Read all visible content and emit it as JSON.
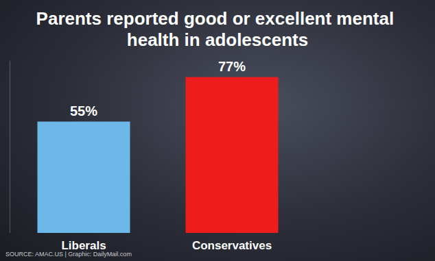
{
  "chart_data": {
    "type": "bar",
    "title": "Parents reported good or excellent mental health in adolescents",
    "categories": [
      "Liberals",
      "Conservatives"
    ],
    "values": [
      55,
      77
    ],
    "value_labels": [
      "55%",
      "77%"
    ],
    "colors": [
      "#6cb9e9",
      "#ee1c1c"
    ],
    "ylim": [
      0,
      85
    ],
    "tick_labels": false,
    "grid": false,
    "data_labels": true,
    "annotations": [
      "SOURCE: AMAC.US | Graphic: DailyMail.com"
    ]
  }
}
